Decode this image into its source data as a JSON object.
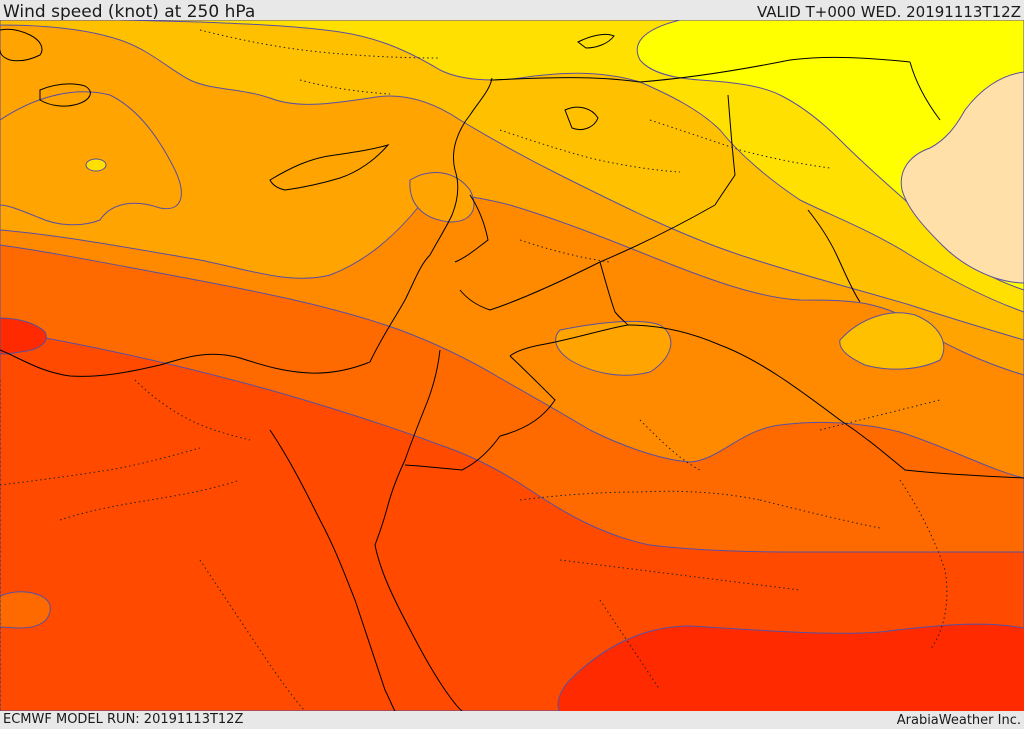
{
  "header": {
    "title": "Wind speed (knot) at 250 hPa",
    "valid": "VALID T+000 WED. 20191113T12Z"
  },
  "footer": {
    "model_run": "ECMWF MODEL RUN: 20191113T12Z",
    "credit": "ArabiaWeather Inc."
  },
  "map": {
    "variable": "wind-speed",
    "level": "250 hPa",
    "unit": "knot",
    "colors": {
      "band_1": "#ffe0a8",
      "band_2": "#ffff00",
      "band_3": "#ffe000",
      "band_4": "#ffc000",
      "band_5": "#ffa400",
      "band_6": "#ff8a00",
      "band_7": "#ff6a00",
      "band_8": "#ff4a00",
      "band_9": "#ff2a00",
      "contour_line": "#5a4fa0",
      "border_line": "#000000"
    }
  }
}
